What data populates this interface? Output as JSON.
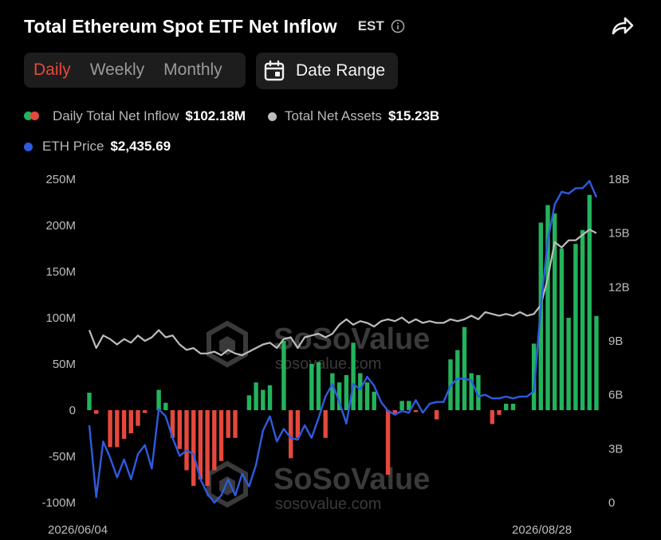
{
  "header": {
    "title": "Total Ethereum Spot ETF Net Inflow",
    "timezone": "EST"
  },
  "tabs": [
    {
      "label": "Daily",
      "active": true
    },
    {
      "label": "Weekly",
      "active": false
    },
    {
      "label": "Monthly",
      "active": false
    }
  ],
  "date_range_label": "Date Range",
  "legend": {
    "inflow_label": "Daily Total Net Inflow",
    "inflow_value": "$102.18M",
    "assets_label": "Total Net Assets",
    "assets_value": "$15.23B",
    "price_label": "ETH Price",
    "price_value": "$2,435.69"
  },
  "watermark": {
    "brand": "SoSoValue",
    "site": "sosovalue.com"
  },
  "colors": {
    "positive": "#23b35c",
    "negative": "#e5483c",
    "assets_line": "#bdbdbd",
    "price_line": "#2f5be0",
    "background": "#000000",
    "active_tab": "#e5483c"
  },
  "chart_data": {
    "type": "bar",
    "x_start_label": "2026/06/04",
    "x_end_label": "2026/08/28",
    "y_left": {
      "min": -100,
      "max": 250,
      "ticks": [
        "250M",
        "200M",
        "150M",
        "100M",
        "50M",
        "0",
        "-50M",
        "-100M"
      ]
    },
    "y_right": {
      "min": 0,
      "max": 18,
      "ticks": [
        "18B",
        "15B",
        "12B",
        "9B",
        "6B",
        "3B",
        "0"
      ]
    },
    "grid": false,
    "series": [
      {
        "name": "Daily Total Net Inflow",
        "kind": "bar",
        "unit": "M USD",
        "values": [
          19,
          -4,
          0,
          -40,
          -40,
          -31,
          -25,
          -17,
          -3,
          0,
          22,
          8,
          -30,
          -42,
          -65,
          -82,
          -75,
          -82,
          -65,
          -55,
          -30,
          -30,
          0,
          16,
          30,
          22,
          27,
          0,
          75,
          -52,
          -30,
          0,
          50,
          52,
          -30,
          40,
          30,
          38,
          73,
          40,
          30,
          20,
          0,
          -70,
          -5,
          10,
          10,
          -2,
          0,
          0,
          -10,
          0,
          55,
          65,
          90,
          40,
          38,
          0,
          -15,
          -5,
          7,
          7,
          0,
          0,
          72,
          203,
          222,
          213,
          175,
          100,
          180,
          195,
          233,
          102
        ]
      },
      {
        "name": "Total Net Assets",
        "kind": "line",
        "axis": "right",
        "unit": "B USD",
        "values": [
          9.6,
          8.6,
          9.3,
          9.1,
          8.8,
          9.1,
          8.9,
          9.3,
          9.0,
          9.2,
          9.6,
          9.2,
          9.3,
          8.8,
          8.5,
          8.6,
          8.3,
          8.3,
          8.4,
          8.2,
          8.5,
          8.3,
          8.2,
          8.4,
          8.6,
          8.8,
          8.9,
          8.6,
          9.1,
          9.2,
          8.6,
          9.2,
          9.3,
          9.4,
          9.2,
          9.4,
          9.9,
          10.2,
          9.9,
          10.1,
          10.0,
          9.8,
          10.1,
          10.2,
          10.1,
          10.3,
          10.0,
          10.2,
          10.0,
          10.1,
          10.0,
          10.0,
          10.2,
          10.1,
          10.2,
          10.4,
          10.2,
          10.6,
          10.5,
          10.4,
          10.5,
          10.4,
          10.6,
          10.4,
          10.5,
          11.0,
          12.5,
          14.5,
          14.2,
          14.6,
          14.6,
          14.9,
          15.2,
          15.0
        ]
      },
      {
        "name": "ETH Price",
        "kind": "line",
        "axis": "right",
        "unit": "B (right-axis scale)",
        "values": [
          4.3,
          0.3,
          3.4,
          2.5,
          1.4,
          2.4,
          1.3,
          2.7,
          3.2,
          1.9,
          5.2,
          4.8,
          3.6,
          2.6,
          2.9,
          2.7,
          1.3,
          0.5,
          0.0,
          0.4,
          1.3,
          0.4,
          1.6,
          0.9,
          2.1,
          4.0,
          4.8,
          3.4,
          4.1,
          3.6,
          3.5,
          4.3,
          3.6,
          4.7,
          5.9,
          6.6,
          5.6,
          4.4,
          6.6,
          6.3,
          7.0,
          6.5,
          5.6,
          5.1,
          4.9,
          5.1,
          5.0,
          5.7,
          5.0,
          5.5,
          5.6,
          5.6,
          6.5,
          6.9,
          6.9,
          6.8,
          5.9,
          6.0,
          5.8,
          5.8,
          5.9,
          5.8,
          5.9,
          5.9,
          6.2,
          10.9,
          14.6,
          16.6,
          17.3,
          17.2,
          17.5,
          17.5,
          17.9,
          17.0
        ]
      }
    ]
  }
}
